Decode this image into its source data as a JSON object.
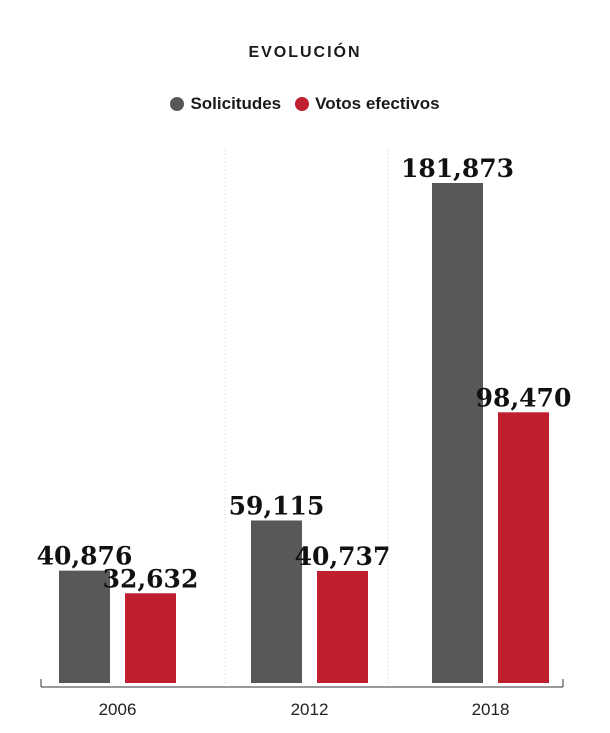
{
  "chart_data": {
    "type": "bar",
    "title": "EVOLUCIÓN",
    "categories": [
      "2006",
      "2012",
      "2018"
    ],
    "series": [
      {
        "name": "Solicitudes",
        "values": [
          40876,
          59115,
          181873
        ],
        "labels": [
          "40,876",
          "59,115",
          "181,873"
        ],
        "color": "#58585a"
      },
      {
        "name": "Votos efectivos",
        "values": [
          32632,
          40737,
          98470
        ],
        "labels": [
          "32,632",
          "40,737",
          "98,470"
        ],
        "color": "#c01f30"
      }
    ],
    "xlabel": "",
    "ylabel": "",
    "ylim": [
      0,
      200000
    ],
    "grid": false,
    "legend_position": "top-center"
  }
}
